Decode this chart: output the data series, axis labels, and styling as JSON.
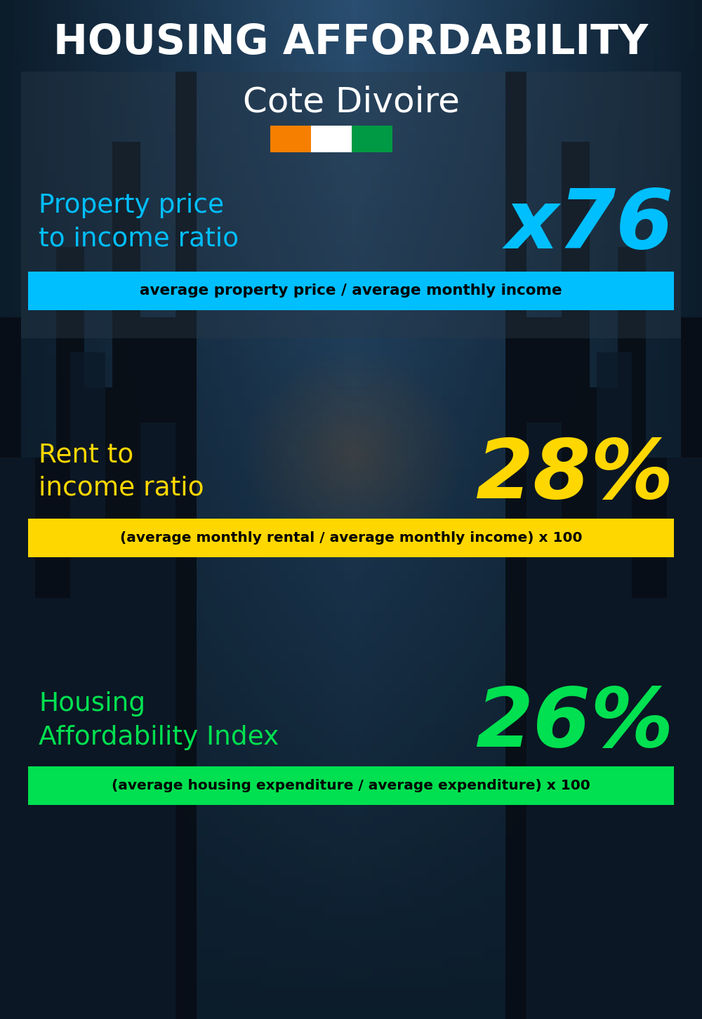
{
  "title_line1": "HOUSING AFFORDABILITY",
  "title_line2": "Cote Divoire",
  "bg_color": "#0a1520",
  "section1_label": "Property price\nto income ratio",
  "section1_value": "x76",
  "section1_label_color": "#00bfff",
  "section1_value_color": "#00bfff",
  "section1_formula": "average property price / average monthly income",
  "section1_formula_bg": "#00bfff",
  "section2_label": "Rent to\nincome ratio",
  "section2_value": "28%",
  "section2_label_color": "#ffd700",
  "section2_value_color": "#ffd700",
  "section2_formula": "(average monthly rental / average monthly income) x 100",
  "section2_formula_bg": "#ffd700",
  "section3_label": "Housing\nAffordability Index",
  "section3_value": "26%",
  "section3_label_color": "#00e050",
  "section3_value_color": "#00e050",
  "section3_formula": "(average housing expenditure / average expenditure) x 100",
  "section3_formula_bg": "#00e050",
  "flag_orange": "#f77f00",
  "flag_white": "#ffffff",
  "flag_green": "#009a44",
  "building_dark": "#0c1822",
  "building_mid": "#111f2e",
  "sky_color": "#1a3a5c",
  "sky_light": "#2a6090"
}
